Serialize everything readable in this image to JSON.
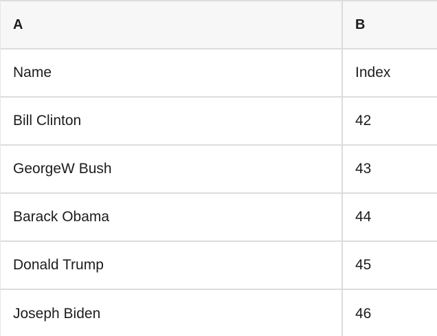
{
  "table": {
    "column_headers": [
      "A",
      "B"
    ],
    "rows": [
      [
        "Name",
        "Index"
      ],
      [
        "Bill Clinton",
        "42"
      ],
      [
        "GeorgeW Bush",
        "43"
      ],
      [
        "Barack Obama",
        "44"
      ],
      [
        "Donald Trump",
        "45"
      ],
      [
        "Joseph Biden",
        "46"
      ]
    ]
  },
  "colors": {
    "header_bg": "#f7f7f7",
    "border_color": "#dcdcdc",
    "edge_color": "#e6e6e6",
    "text_color": "#1c1c1c",
    "cell_bg": "#ffffff"
  }
}
